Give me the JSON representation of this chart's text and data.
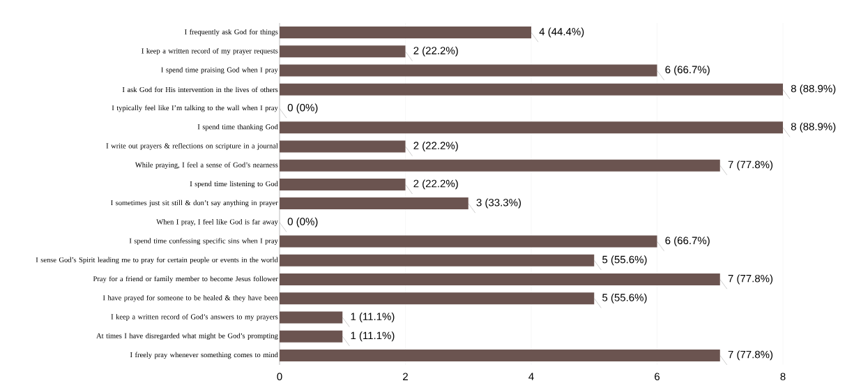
{
  "chart_data": {
    "type": "bar",
    "orientation": "horizontal",
    "categories": [
      "I frequently ask God for things",
      "I keep a written record of my prayer requests",
      "I spend time praising God when I pray",
      "I ask God for His intervention in the lives of others",
      "I typically feel like I’m talking to the wall when I pray",
      "I spend time thanking God",
      "I write out prayers & reflections on scripture in a journal",
      "While praying, I feel a sense of God’s nearness",
      "I spend time listening to God",
      "I sometimes just sit still & don’t say anything in prayer",
      "When I pray, I feel like God is far away",
      "I spend time confessing specific sins when I pray",
      "I sense God’s Spirit leading me to pray for certain people or events in the world",
      "Pray for a friend or family member to become Jesus follower",
      "I have prayed for someone to be healed & they have been",
      "I keep a written record of God’s answers to my prayers",
      "At times I have disregarded what might be God’s prompting",
      "I freely pray whenever something comes to mind"
    ],
    "values": [
      4,
      2,
      6,
      8,
      0,
      8,
      2,
      7,
      2,
      3,
      0,
      6,
      5,
      7,
      5,
      1,
      1,
      7
    ],
    "value_labels": [
      "4 (44.4%)",
      "2 (22.2%)",
      "6 (66.7%)",
      "8 (88.9%)",
      "0 (0%)",
      "8 (88.9%)",
      "2 (22.2%)",
      "7 (77.8%)",
      "2 (22.2%)",
      "3 (33.3%)",
      "0 (0%)",
      "6 (66.7%)",
      "5 (55.6%)",
      "7 (77.8%)",
      "5 (55.6%)",
      "1 (11.1%)",
      "1 (11.1%)",
      "7 (77.8%)"
    ],
    "color": "#6b5450",
    "xlim": [
      0,
      8
    ],
    "xticks": [
      0,
      2,
      4,
      6,
      8
    ],
    "grid": "x"
  }
}
